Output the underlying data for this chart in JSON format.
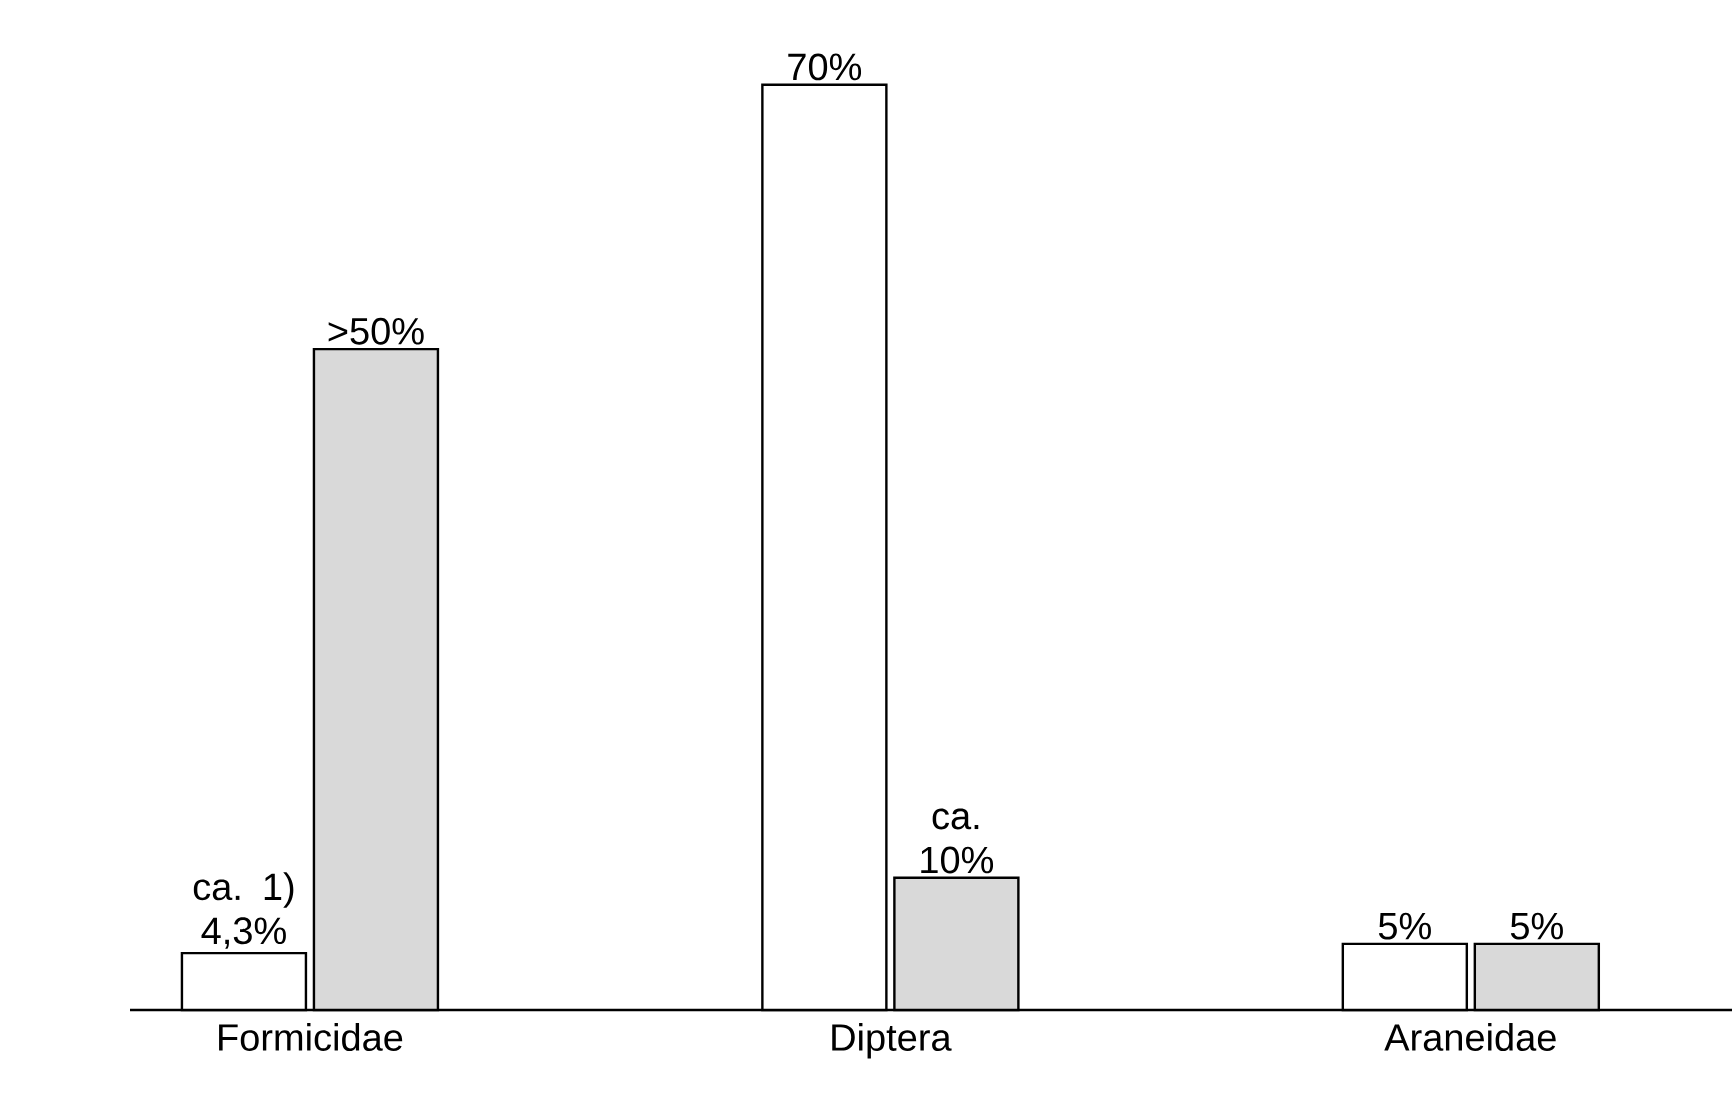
{
  "chart_data": {
    "type": "bar",
    "categories": [
      "Formicidae",
      "Diptera",
      "Araneidae"
    ],
    "series": [
      {
        "color": "#ffffff",
        "values": [
          4.3,
          70,
          5
        ],
        "value_labels": [
          "ca. 1) 4,3%",
          "70%",
          "5%"
        ]
      },
      {
        "color": "#d9d9d9",
        "values": [
          50,
          10,
          5
        ],
        "value_labels": [
          ">50%",
          "ca. 10%",
          "5%"
        ]
      }
    ]
  }
}
